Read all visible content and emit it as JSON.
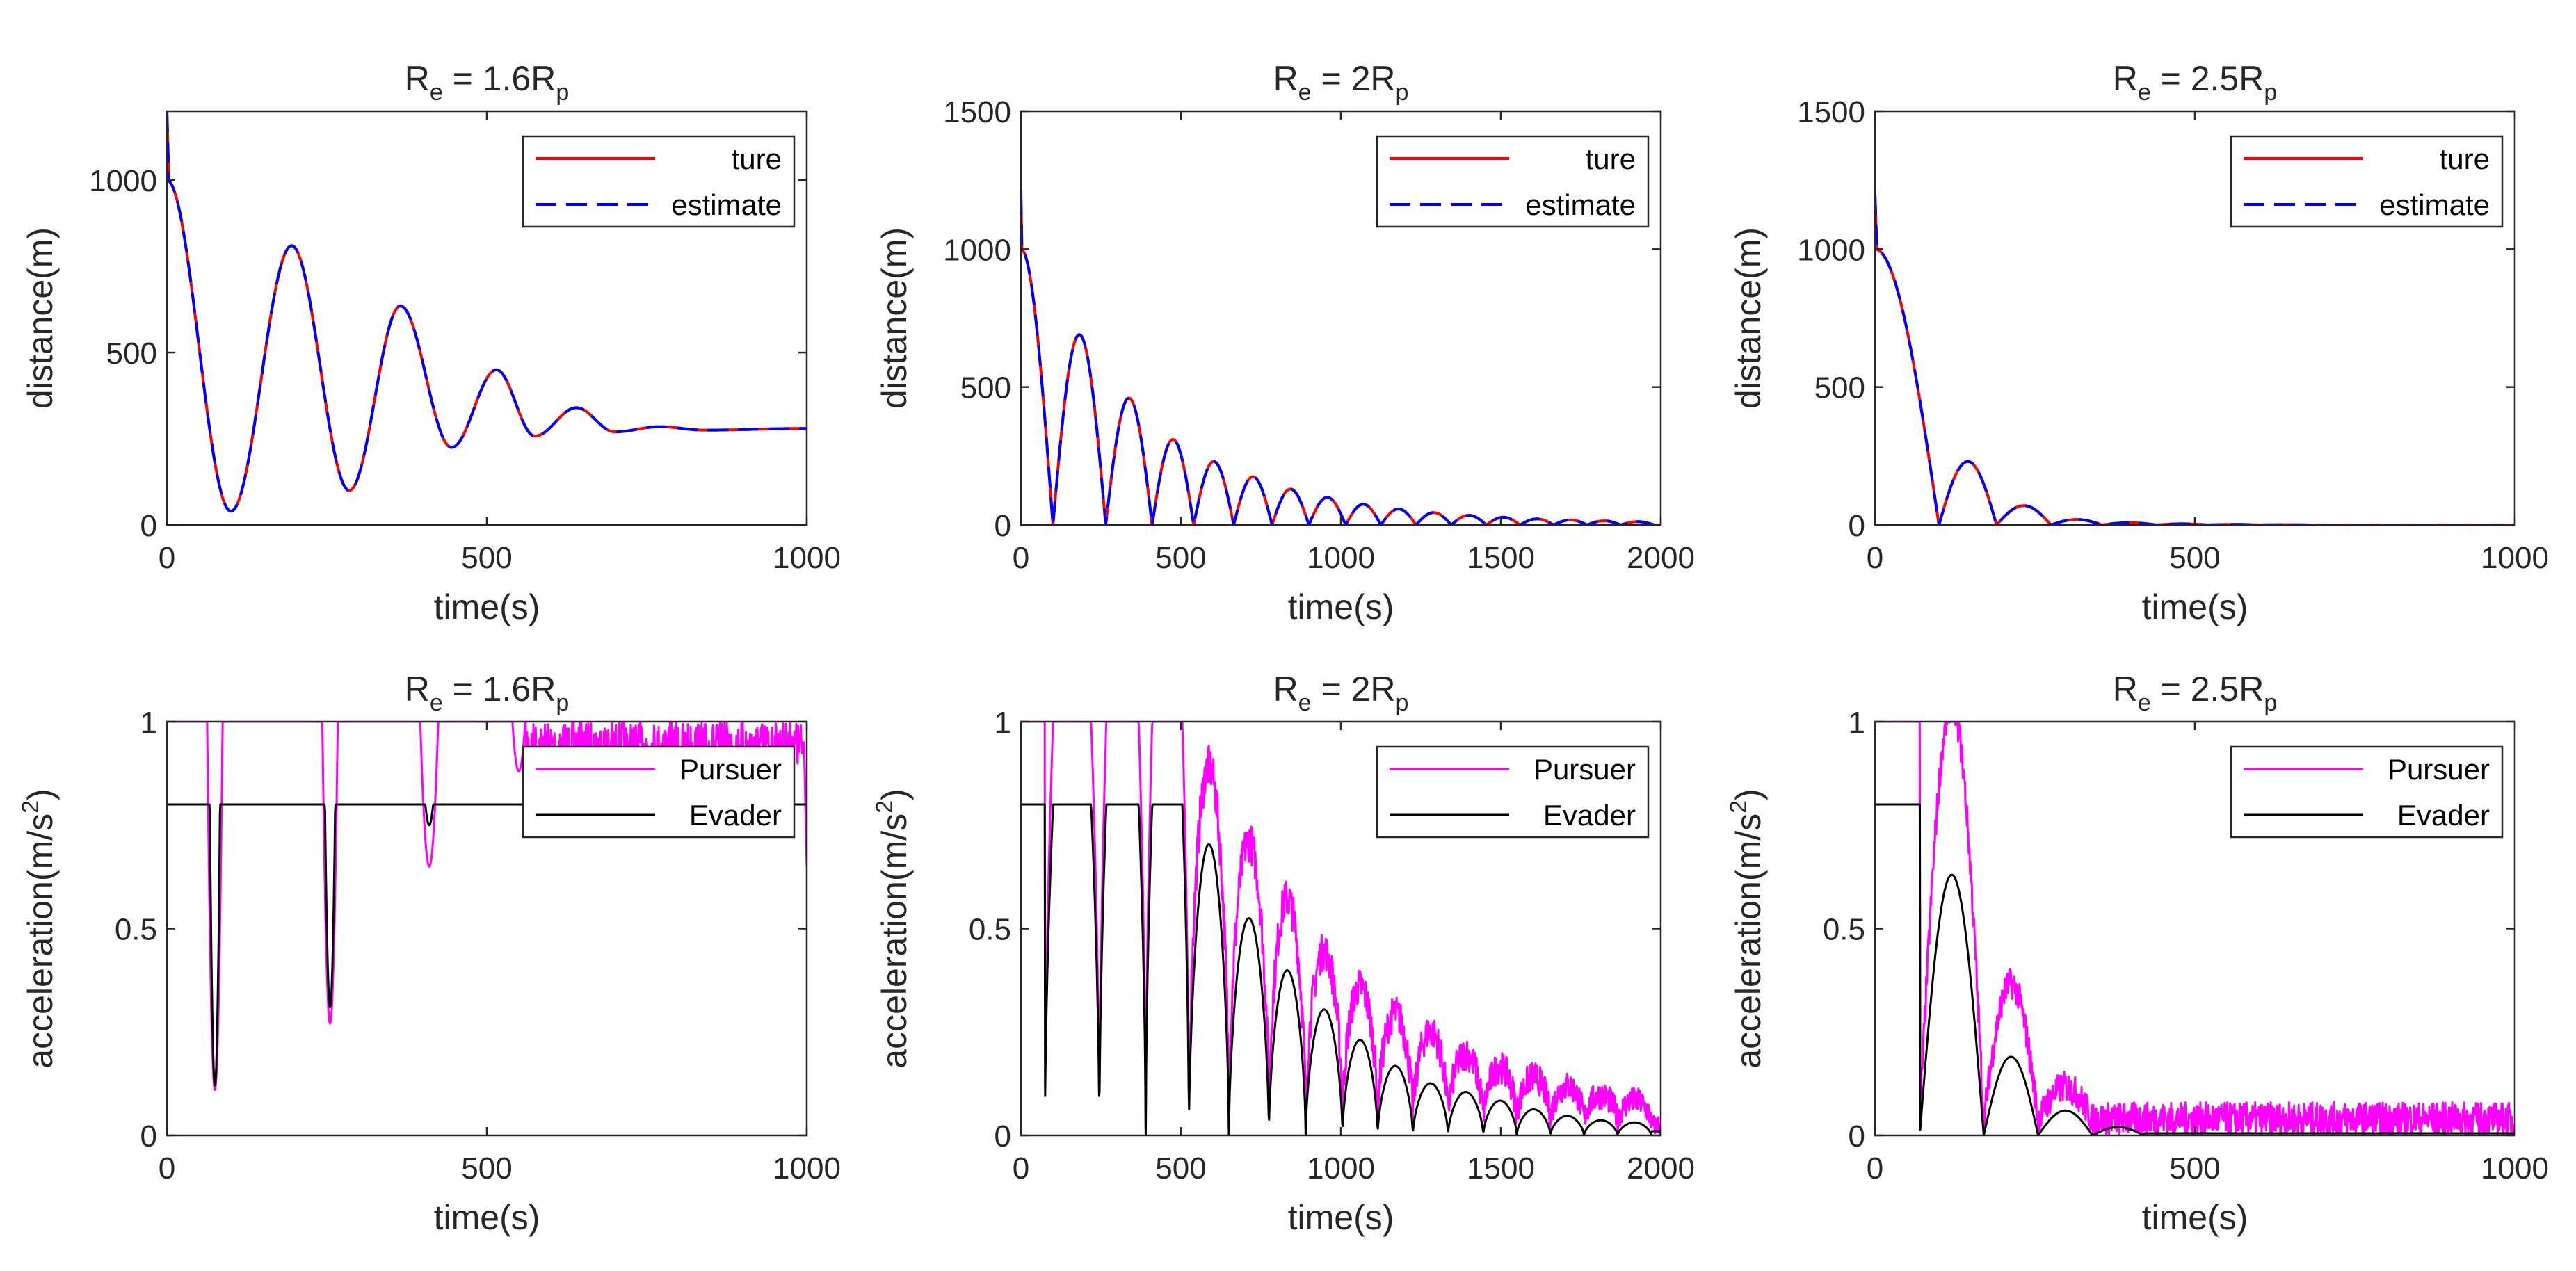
{
  "figure": {
    "background": "#ffffff"
  },
  "chart_data": [
    {
      "id": "top-left",
      "type": "line",
      "title": {
        "main": "R",
        "sub1": "e",
        "mid": " = 1.6R",
        "sub2": "p"
      },
      "xlabel": "time(s)",
      "ylabel": "distance(m)",
      "xlim": [
        0,
        1000
      ],
      "ylim": [
        0,
        1200
      ],
      "xticks": [
        0,
        500,
        1000
      ],
      "yticks": [
        0,
        500,
        1000
      ],
      "legend": "top-right",
      "series": [
        {
          "name": "ture",
          "color": "#ff0000",
          "dash": "solid",
          "width": 4,
          "model": {
            "kind": "distDecay",
            "start": 1200,
            "base": 1000,
            "final": 280,
            "peaks": [
              [
                0,
                1000
              ],
              [
                100,
                40
              ],
              [
                195,
                810
              ],
              [
                285,
                100
              ],
              [
                365,
                635
              ],
              [
                445,
                225
              ],
              [
                515,
                450
              ],
              [
                575,
                258
              ],
              [
                640,
                340
              ],
              [
                700,
                270
              ],
              [
                770,
                285
              ],
              [
                840,
                275
              ],
              [
                1000,
                280
              ]
            ]
          }
        },
        {
          "name": "estimate",
          "color": "#0000ff",
          "dash": "long",
          "width": 4,
          "model": {
            "kind": "same"
          }
        }
      ]
    },
    {
      "id": "top-mid",
      "type": "line",
      "title": {
        "main": "R",
        "sub1": "e",
        "mid": " = 2R",
        "sub2": "p"
      },
      "xlabel": "time(s)",
      "ylabel": "distance(m)",
      "xlim": [
        0,
        2000
      ],
      "ylim": [
        0,
        1500
      ],
      "xticks": [
        0,
        500,
        1000,
        1500,
        2000
      ],
      "yticks": [
        0,
        500,
        1000,
        1500
      ],
      "legend": "top-right",
      "series": [
        {
          "name": "ture",
          "color": "#ff0000",
          "dash": "solid",
          "width": 4,
          "model": {
            "kind": "bounce",
            "start": 1200,
            "first": 1000,
            "zeros": [
              100,
              265,
              410,
              540,
              665,
              785,
              900,
              1015,
              1125,
              1235,
              1345,
              1455,
              1560,
              1665,
              1770,
              1875,
              1980
            ],
            "amps": [
              690,
              460,
              310,
              230,
              175,
              130,
              100,
              75,
              58,
              45,
              35,
              28,
              22,
              18,
              15,
              12
            ]
          }
        },
        {
          "name": "estimate",
          "color": "#0000ff",
          "dash": "long",
          "width": 4,
          "model": {
            "kind": "same"
          }
        }
      ]
    },
    {
      "id": "top-right",
      "type": "line",
      "title": {
        "main": "R",
        "sub1": "e",
        "mid": " = 2.5R",
        "sub2": "p"
      },
      "xlabel": "time(s)",
      "ylabel": "distance(m)",
      "xlim": [
        0,
        1000
      ],
      "ylim": [
        0,
        1500
      ],
      "xticks": [
        0,
        500,
        1000
      ],
      "yticks": [
        0,
        500,
        1000,
        1500
      ],
      "legend": "top-right",
      "series": [
        {
          "name": "ture",
          "color": "#ff0000",
          "dash": "solid",
          "width": 4,
          "model": {
            "kind": "bounce",
            "start": 1200,
            "first": 1000,
            "zeros": [
              100,
              190,
              275,
              355,
              440,
              520,
              600,
              680,
              760
            ],
            "amps": [
              230,
              70,
              20,
              8,
              4,
              2,
              1,
              0
            ]
          }
        },
        {
          "name": "estimate",
          "color": "#0000ff",
          "dash": "long",
          "width": 4,
          "model": {
            "kind": "same"
          }
        }
      ]
    },
    {
      "id": "bottom-left",
      "type": "line",
      "title": {
        "main": "R",
        "sub1": "e",
        "mid": " = 1.6R",
        "sub2": "p"
      },
      "xlabel": "time(s)",
      "ylabel": "acceleration(m/s",
      "ylabel_sup": "2",
      "ylabel_end": ")",
      "xlim": [
        0,
        1000
      ],
      "ylim": [
        0,
        1
      ],
      "xticks": [
        0,
        500,
        1000
      ],
      "yticks": [
        0,
        0.5,
        1
      ],
      "legend": "top-right",
      "series": [
        {
          "name": "Pursuer",
          "color": "#ff00ff",
          "dash": "solid",
          "width": 3,
          "model": {
            "kind": "pursuerA",
            "dips": [
              [
                75,
                0.11,
                12
              ],
              [
                255,
                0.27,
                12
              ],
              [
                410,
                0.65,
                14
              ],
              [
                550,
                0.88,
                10
              ]
            ],
            "noiseStart": 560,
            "noise": 0.1
          }
        },
        {
          "name": "Evader",
          "color": "#000000",
          "dash": "solid",
          "width": 3,
          "model": {
            "kind": "evaderA",
            "level": 0.8,
            "dips": [
              [
                75,
                0.12,
                8
              ],
              [
                255,
                0.31,
                8
              ],
              [
                410,
                0.75,
                6
              ]
            ]
          }
        }
      ]
    },
    {
      "id": "bottom-mid",
      "type": "line",
      "title": {
        "main": "R",
        "sub1": "e",
        "mid": " = 2R",
        "sub2": "p"
      },
      "xlabel": "time(s)",
      "ylabel": "acceleration(m/s",
      "ylabel_sup": "2",
      "ylabel_end": ")",
      "xlim": [
        0,
        2000
      ],
      "ylim": [
        0,
        1
      ],
      "xticks": [
        0,
        500,
        1000,
        1500,
        2000
      ],
      "yticks": [
        0,
        0.5,
        1
      ],
      "legend": "top-right",
      "series": [
        {
          "name": "Pursuer",
          "color": "#ff00ff",
          "dash": "solid",
          "width": 3,
          "model": {
            "kind": "pursuerB",
            "zeros": [
              75,
              245,
              390,
              525,
              650,
              775,
              890,
              1005,
              1115,
              1225,
              1335,
              1445,
              1550,
              1655,
              1760,
              1865,
              1970
            ],
            "amps": [
              1,
              1,
              1,
              0.8,
              0.63,
              0.5,
              0.38,
              0.3,
              0.24,
              0.2,
              0.15,
              0.12,
              0.1,
              0.08,
              0.06,
              0.05
            ],
            "noise": 0.08
          }
        },
        {
          "name": "Evader",
          "color": "#000000",
          "dash": "solid",
          "width": 3,
          "model": {
            "kind": "evaderB",
            "zeros": [
              75,
              245,
              390,
              525,
              650,
              775,
              890,
              1005,
              1115,
              1225,
              1335,
              1445,
              1550,
              1655,
              1760,
              1865,
              1970
            ],
            "amps": [
              0.8,
              0.8,
              0.8,
              0.67,
              0.5,
              0.38,
              0.29,
              0.22,
              0.16,
              0.12,
              0.1,
              0.08,
              0.06,
              0.045,
              0.035,
              0.03
            ]
          }
        }
      ]
    },
    {
      "id": "bottom-right",
      "type": "line",
      "title": {
        "main": "R",
        "sub1": "e",
        "mid": " = 2.5R",
        "sub2": "p"
      },
      "xlabel": "time(s)",
      "ylabel": "acceleration(m/s",
      "ylabel_sup": "2",
      "ylabel_end": ")",
      "xlim": [
        0,
        1000
      ],
      "ylim": [
        0,
        1
      ],
      "xticks": [
        0,
        500,
        1000
      ],
      "yticks": [
        0,
        0.5,
        1
      ],
      "legend": "top-right",
      "series": [
        {
          "name": "Pursuer",
          "color": "#ff00ff",
          "dash": "solid",
          "width": 3,
          "model": {
            "kind": "pursuerC",
            "zeros": [
              70,
              170,
              255,
              340
            ],
            "amps": [
              1,
              0.33,
              0.08
            ],
            "noise": 0.05
          }
        },
        {
          "name": "Evader",
          "color": "#000000",
          "dash": "solid",
          "width": 3,
          "model": {
            "kind": "evaderC",
            "zeros": [
              70,
              170,
              255,
              340,
              420
            ],
            "amps": [
              0.63,
              0.19,
              0.06,
              0.02
            ]
          }
        }
      ]
    }
  ]
}
